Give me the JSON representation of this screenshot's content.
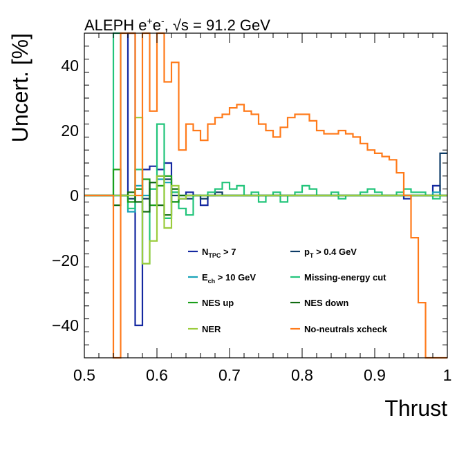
{
  "chart_data": {
    "type": "line",
    "title": {
      "prefix": "ALEPH e",
      "sup1": "+",
      "mid": "e",
      "sup2": "-",
      "rest": ", √s = 91.2 GeV"
    },
    "xlabel": "Thrust",
    "ylabel": "Uncert. [%]",
    "xlim": [
      0.5,
      1.0
    ],
    "ylim": [
      -50,
      50
    ],
    "xticks": [
      0.5,
      0.6,
      0.7,
      0.8,
      0.9,
      1.0
    ],
    "xtick_labels": [
      "0.5",
      "0.6",
      "0.7",
      "0.8",
      "0.9",
      "1"
    ],
    "yticks": [
      -40,
      -20,
      0,
      20,
      40
    ],
    "ytick_labels": [
      "−40",
      "−20",
      "0",
      "20",
      "40"
    ],
    "grid": false,
    "legend_position": "lower-center",
    "bin_edges": [
      0.5,
      0.54,
      0.55,
      0.56,
      0.57,
      0.58,
      0.59,
      0.6,
      0.61,
      0.62,
      0.63,
      0.64,
      0.65,
      0.66,
      0.67,
      0.68,
      0.69,
      0.7,
      0.71,
      0.72,
      0.73,
      0.74,
      0.75,
      0.76,
      0.77,
      0.78,
      0.79,
      0.8,
      0.81,
      0.82,
      0.83,
      0.84,
      0.85,
      0.86,
      0.87,
      0.88,
      0.89,
      0.9,
      0.91,
      0.92,
      0.93,
      0.94,
      0.95,
      0.96,
      0.97,
      0.98,
      0.99,
      1.0
    ],
    "series": [
      {
        "name": "N",
        "name_sub": "TPC",
        "name_rest": " > 7",
        "color": "#1428a0",
        "z": 2,
        "values": [
          0,
          0,
          0,
          50,
          -40,
          8,
          9,
          8,
          10,
          -2,
          -1,
          1,
          0,
          -3,
          0,
          0,
          0,
          0,
          0,
          0,
          0,
          0,
          0,
          0,
          0,
          0,
          0,
          0,
          0,
          0,
          0,
          0,
          0,
          0,
          0,
          0,
          0,
          0,
          0,
          0,
          0,
          -1,
          0,
          0,
          0,
          3,
          0
        ]
      },
      {
        "name": "p",
        "name_sub": "T",
        "name_rest": " > 0.4 GeV",
        "color": "#0d3b66",
        "z": 2,
        "values": [
          0,
          0,
          0,
          -1,
          2,
          -1,
          4,
          6,
          5,
          0,
          -1,
          -1,
          0,
          -1,
          0,
          1,
          0,
          0,
          0,
          0,
          0,
          0,
          0,
          0,
          0,
          0,
          0,
          0,
          0,
          0,
          0,
          0,
          0,
          0,
          0,
          0,
          0,
          0,
          0,
          0,
          0,
          0,
          0,
          0,
          0,
          0,
          13
        ]
      },
      {
        "name": "E",
        "name_sub": "ch",
        "name_rest": " > 10 GeV",
        "color": "#17a2b8",
        "z": 2,
        "values": [
          0,
          0,
          0,
          -5,
          3,
          0,
          2,
          5,
          4,
          1,
          0,
          0,
          0,
          0,
          0,
          0,
          0,
          0,
          0,
          0,
          0,
          0,
          0,
          0,
          0,
          0,
          0,
          0,
          0,
          0,
          0,
          0,
          0,
          0,
          0,
          0,
          0,
          0,
          0,
          0,
          0,
          0,
          0,
          0,
          0,
          1,
          0
        ]
      },
      {
        "name": "Missing-energy cut",
        "name_sub": "",
        "name_rest": "",
        "color": "#21c47a",
        "z": 2,
        "values": [
          0,
          50,
          0,
          -4,
          8,
          -21,
          2,
          22,
          -7,
          1,
          -4,
          -6,
          0,
          0,
          1,
          2,
          4,
          2,
          3,
          0,
          1,
          -2,
          0,
          1,
          -2,
          0,
          1,
          3,
          2,
          0,
          0,
          1,
          -1,
          0,
          0,
          1,
          2,
          1,
          0,
          0,
          1,
          2,
          1,
          1,
          0,
          -1,
          0
        ]
      },
      {
        "name": "NES up",
        "name_sub": "",
        "name_rest": "",
        "color": "#1a9e1a",
        "z": 2,
        "values": [
          0,
          8,
          0,
          -2,
          2,
          5,
          -3,
          3,
          6,
          -2,
          0,
          0,
          0,
          0,
          0,
          0,
          0,
          0,
          0,
          0,
          0,
          0,
          0,
          0,
          0,
          0,
          0,
          0,
          0,
          0,
          0,
          0,
          0,
          0,
          0,
          0,
          0,
          0,
          0,
          0,
          0,
          0,
          0,
          0,
          0,
          0,
          0
        ]
      },
      {
        "name": "NES down",
        "name_sub": "",
        "name_rest": "",
        "color": "#116b11",
        "z": 2,
        "values": [
          0,
          -3,
          0,
          1,
          -2,
          -5,
          4,
          -3,
          -6,
          2,
          0,
          0,
          0,
          0,
          0,
          0,
          0,
          0,
          0,
          0,
          0,
          0,
          0,
          0,
          0,
          0,
          0,
          0,
          0,
          0,
          0,
          0,
          0,
          0,
          0,
          0,
          0,
          0,
          0,
          0,
          0,
          0,
          0,
          0,
          0,
          0,
          0
        ]
      },
      {
        "name": "NER",
        "name_sub": "",
        "name_rest": "",
        "color": "#9bcc3c",
        "z": 2,
        "values": [
          0,
          0,
          0,
          0,
          24,
          -21,
          -14,
          6,
          -10,
          3,
          -1,
          0,
          0,
          0,
          0,
          0,
          0,
          0,
          0,
          0,
          0,
          0,
          0,
          0,
          0,
          0,
          0,
          0,
          0,
          0,
          0,
          0,
          0,
          0,
          0,
          0,
          0,
          0,
          0,
          0,
          0,
          0,
          0,
          0,
          0,
          0,
          0
        ]
      },
      {
        "name": "No-neutrals xcheck",
        "name_sub": "",
        "name_rest": "",
        "color": "#ff7a1a",
        "z": 3,
        "values": [
          0,
          -50,
          50,
          50,
          0,
          50,
          26,
          50,
          35,
          41,
          14,
          22,
          20,
          17,
          22,
          24,
          25,
          27,
          28,
          26,
          25,
          22,
          20,
          18,
          21,
          24,
          25,
          25,
          23,
          20,
          19,
          19,
          20,
          19,
          18,
          16,
          14,
          13,
          12,
          11,
          7,
          0,
          -13,
          -33,
          -50,
          -50,
          -50
        ]
      }
    ]
  }
}
